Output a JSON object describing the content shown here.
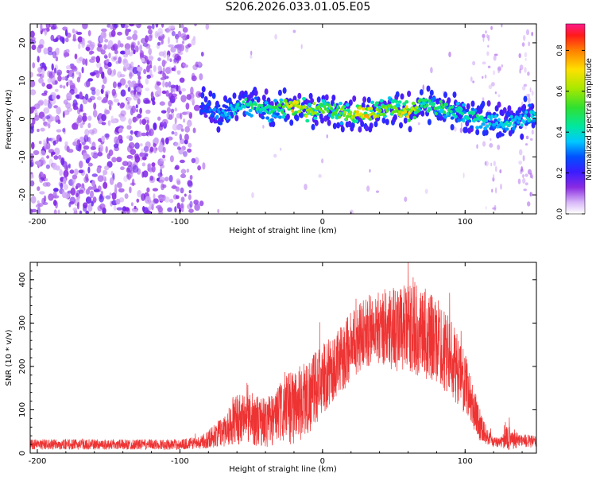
{
  "title": "S206.2026.033.01.05.E05",
  "top_panel": {
    "xlabel": "Height of straight line (km)",
    "ylabel": "Frequency (Hz)",
    "colorbar_label": "Normalized spectral amplitude"
  },
  "bottom_panel": {
    "xlabel": "Height of straight line (km)",
    "ylabel": "SNR (10 * v/v)"
  },
  "chart_data": [
    {
      "type": "heatmap",
      "title": "S206.2026.033.01.05.E05",
      "xlabel": "Height of straight line (km)",
      "ylabel": "Frequency (Hz)",
      "xlim": [
        -205,
        150
      ],
      "ylim": [
        -25,
        25
      ],
      "xticks": [
        -200,
        -100,
        0,
        100
      ],
      "yticks": [
        -20,
        -10,
        0,
        10,
        20
      ],
      "colorbar": {
        "label": "Normalized spectral amplitude",
        "range": [
          0,
          0.93
        ],
        "ticks": [
          0.0,
          0.2,
          0.4,
          0.6,
          0.8
        ]
      },
      "ridge": {
        "x": [
          -85,
          -70,
          -60,
          -50,
          -40,
          -30,
          -20,
          -10,
          0,
          10,
          20,
          30,
          40,
          50,
          60,
          70,
          80,
          90,
          100,
          110,
          120,
          130,
          140,
          150
        ],
        "y": [
          3,
          1,
          3,
          4,
          2,
          3,
          3,
          2,
          3,
          2,
          1,
          1,
          2,
          3,
          2,
          4,
          3,
          2,
          1,
          0,
          -1,
          -1,
          0,
          1
        ],
        "peak_amplitude": [
          0.3,
          0.35,
          0.45,
          0.5,
          0.5,
          0.55,
          0.8,
          0.7,
          0.6,
          0.6,
          0.7,
          0.85,
          0.65,
          0.6,
          0.8,
          0.55,
          0.55,
          0.5,
          0.45,
          0.5,
          0.4,
          0.45,
          0.4,
          0.45
        ]
      }
    },
    {
      "type": "line",
      "xlabel": "Height of straight line (km)",
      "ylabel": "SNR (10 * v/v)",
      "xlim": [
        -205,
        150
      ],
      "ylim": [
        0,
        440
      ],
      "xticks": [
        -200,
        -100,
        0,
        100
      ],
      "yticks": [
        0,
        100,
        200,
        300,
        400
      ],
      "series": [
        {
          "name": "SNR",
          "color": "#ee3333",
          "envelope_x": [
            -205,
            -150,
            -100,
            -85,
            -70,
            -60,
            -50,
            -40,
            -30,
            -20,
            -10,
            0,
            10,
            20,
            30,
            40,
            50,
            60,
            70,
            80,
            90,
            100,
            110,
            115,
            120,
            125,
            130,
            140,
            150
          ],
          "envelope_mean": [
            20,
            20,
            20,
            25,
            50,
            80,
            80,
            70,
            90,
            110,
            130,
            170,
            200,
            250,
            280,
            290,
            290,
            285,
            280,
            260,
            220,
            160,
            70,
            40,
            25,
            25,
            35,
            30,
            25
          ],
          "envelope_spread": [
            12,
            12,
            12,
            15,
            35,
            60,
            60,
            60,
            70,
            90,
            90,
            80,
            80,
            80,
            80,
            90,
            100,
            100,
            110,
            100,
            90,
            70,
            40,
            20,
            12,
            12,
            30,
            15,
            15
          ]
        }
      ]
    }
  ],
  "colors": {
    "signal_line": "#ee3333",
    "axes": "#000000",
    "background": "#ffffff"
  }
}
